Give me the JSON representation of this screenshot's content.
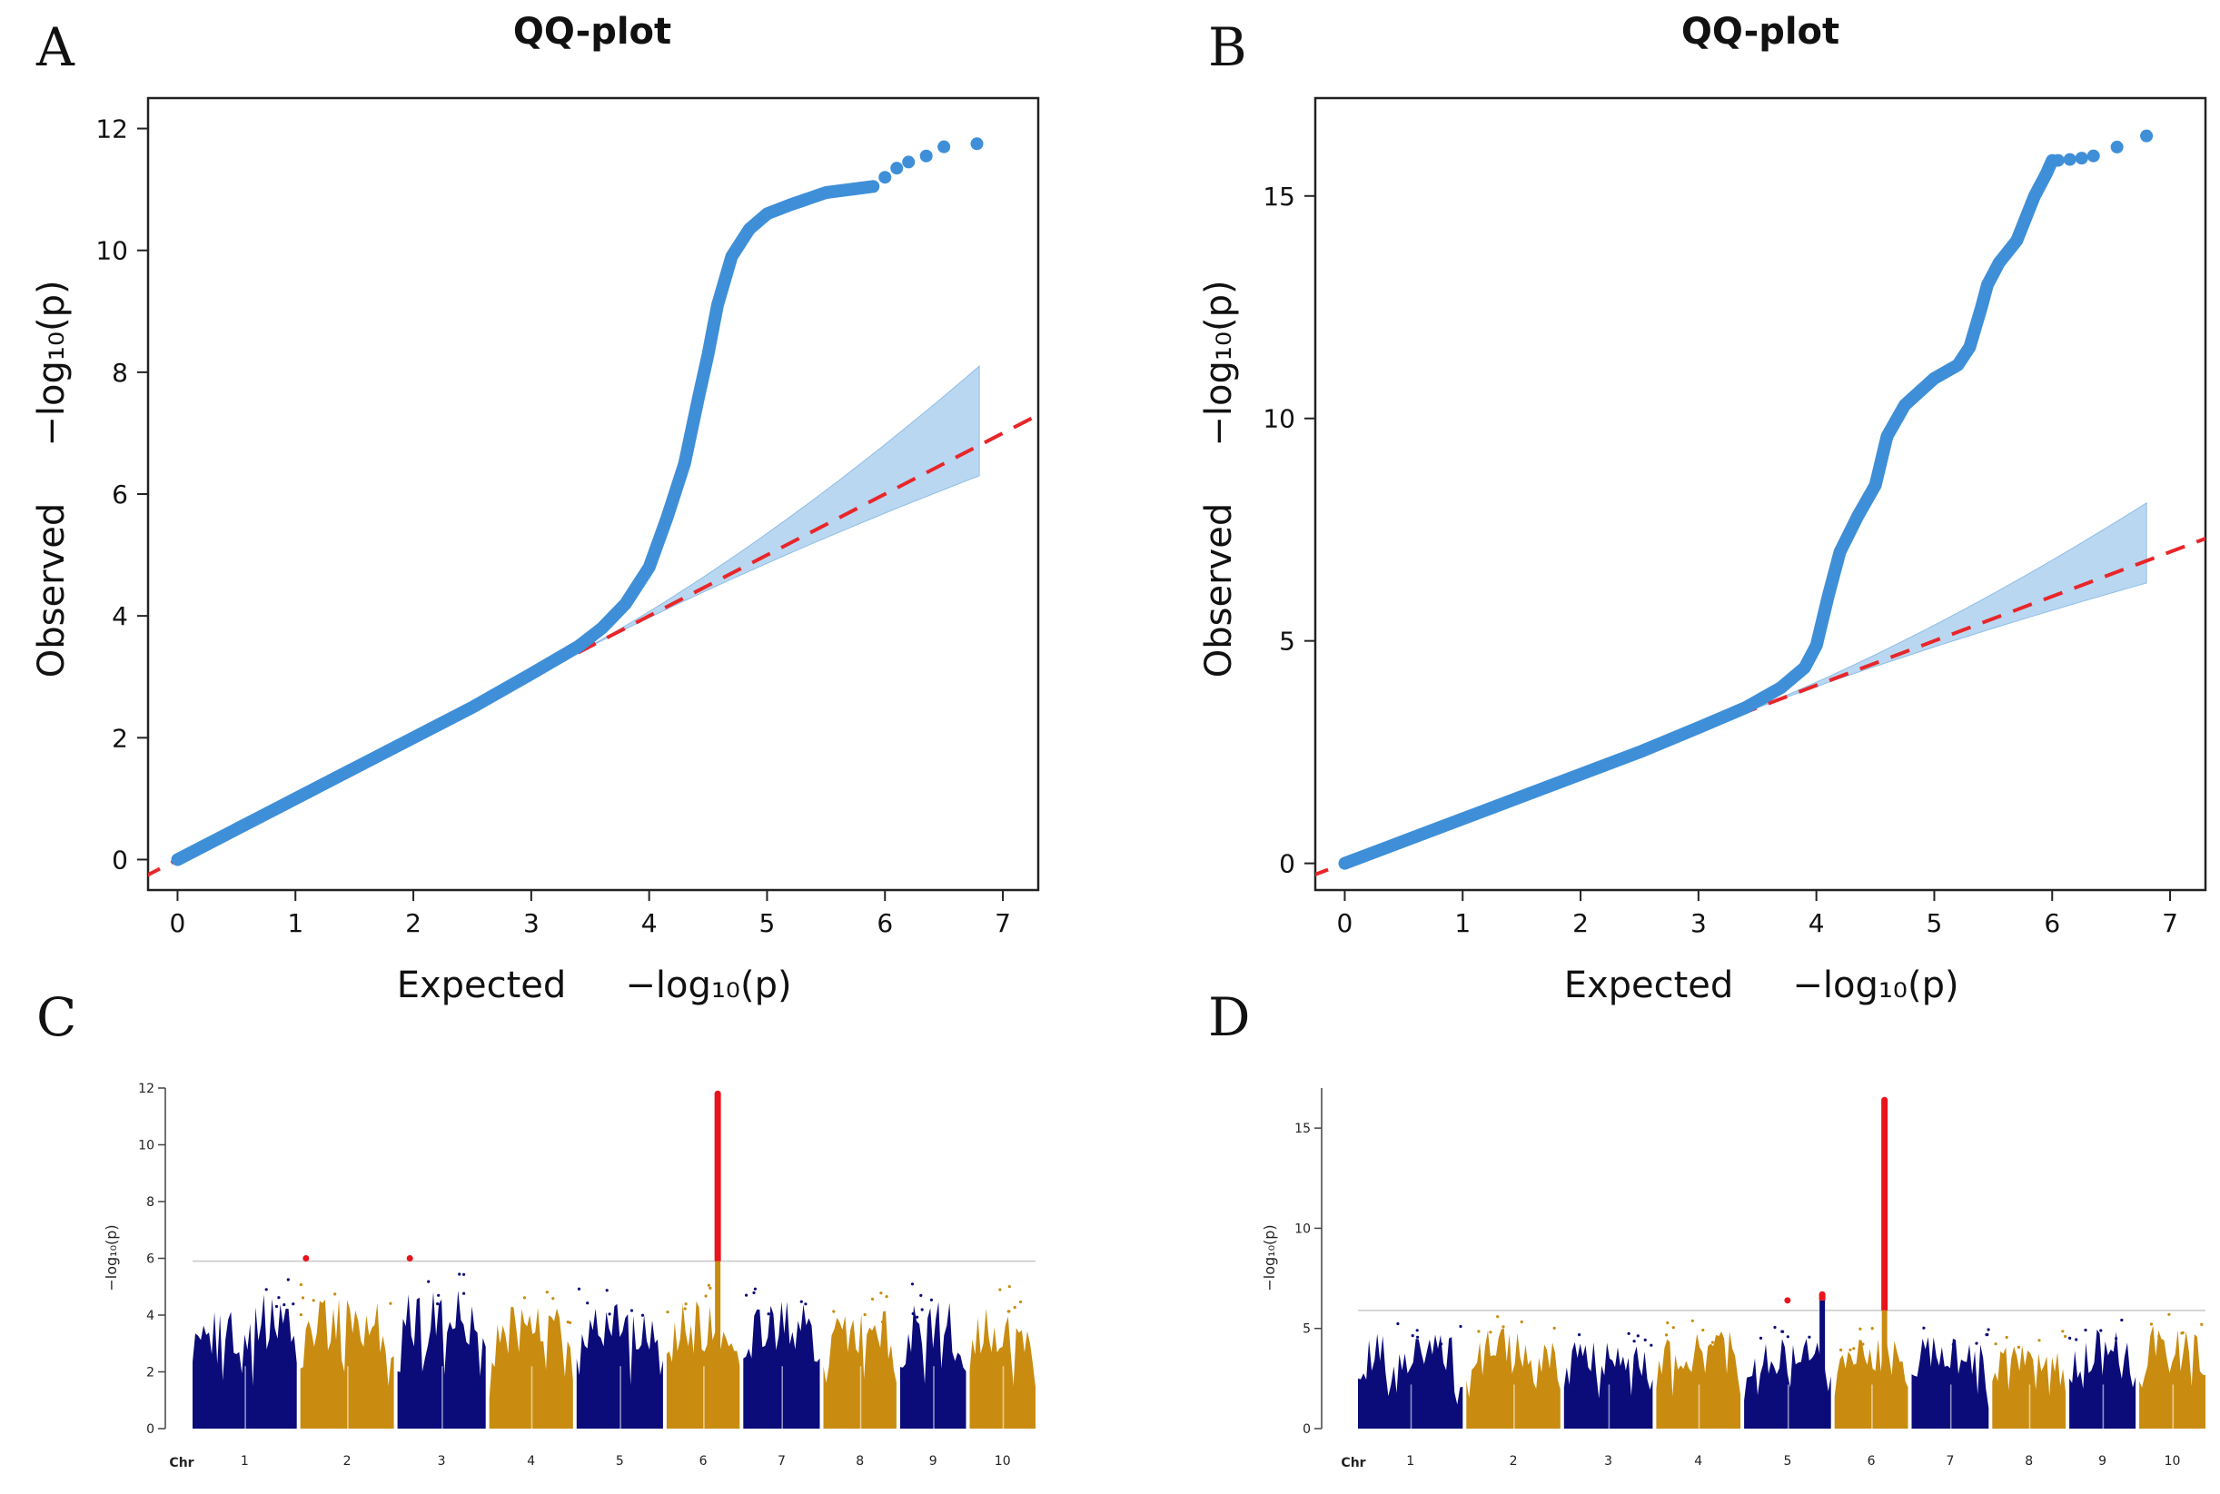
{
  "panel_letters": [
    "A",
    "B",
    "C",
    "D"
  ],
  "chart_data": [
    {
      "panel": "A",
      "type": "scatter",
      "title": "QQ-plot",
      "xlabel": "Expected",
      "ylabel": "Observed",
      "axis_math": "−log₁₀(p)",
      "x_ticks": [
        0,
        1,
        2,
        3,
        4,
        5,
        6,
        7
      ],
      "y_ticks": [
        0,
        2,
        4,
        6,
        8,
        10,
        12
      ],
      "xlim": [
        -0.25,
        7.3
      ],
      "ylim": [
        -0.5,
        12.5
      ],
      "observed_curve": [
        [
          0,
          0
        ],
        [
          0.5,
          0.5
        ],
        [
          1,
          1
        ],
        [
          1.5,
          1.5
        ],
        [
          2,
          2
        ],
        [
          2.5,
          2.5
        ],
        [
          3,
          3.05
        ],
        [
          3.4,
          3.5
        ],
        [
          3.6,
          3.8
        ],
        [
          3.8,
          4.2
        ],
        [
          4,
          4.8
        ],
        [
          4.15,
          5.6
        ],
        [
          4.3,
          6.5
        ],
        [
          4.42,
          7.6
        ],
        [
          4.5,
          8.3
        ],
        [
          4.58,
          9.1
        ],
        [
          4.7,
          9.9
        ],
        [
          4.85,
          10.35
        ],
        [
          5,
          10.6
        ],
        [
          5.2,
          10.75
        ],
        [
          5.5,
          10.95
        ],
        [
          5.9,
          11.05
        ]
      ],
      "top_points": [
        [
          6,
          11.2
        ],
        [
          6.1,
          11.35
        ],
        [
          6.2,
          11.45
        ],
        [
          6.35,
          11.55
        ],
        [
          6.5,
          11.7
        ],
        [
          6.78,
          11.75
        ]
      ],
      "expected_line": [
        [
          -0.3,
          -0.3
        ],
        [
          7.3,
          7.3
        ]
      ],
      "ci_band": {
        "x": [
          3.3,
          6.8
        ],
        "lower": [
          3.3,
          6.3
        ],
        "upper": [
          3.3,
          8.1
        ]
      }
    },
    {
      "panel": "B",
      "type": "scatter",
      "title": "QQ-plot",
      "xlabel": "Expected",
      "ylabel": "Observed",
      "axis_math": "−log₁₀(p)",
      "x_ticks": [
        0,
        1,
        2,
        3,
        4,
        5,
        6,
        7
      ],
      "y_ticks": [
        0,
        5,
        10,
        15
      ],
      "xlim": [
        -0.25,
        7.3
      ],
      "ylim": [
        -0.6,
        17.2
      ],
      "observed_curve": [
        [
          0,
          0
        ],
        [
          0.5,
          0.5
        ],
        [
          1,
          1
        ],
        [
          1.5,
          1.5
        ],
        [
          2,
          2
        ],
        [
          2.5,
          2.5
        ],
        [
          3,
          3.05
        ],
        [
          3.4,
          3.5
        ],
        [
          3.7,
          3.95
        ],
        [
          3.9,
          4.4
        ],
        [
          4,
          4.9
        ],
        [
          4.1,
          6
        ],
        [
          4.2,
          7
        ],
        [
          4.35,
          7.8
        ],
        [
          4.5,
          8.5
        ],
        [
          4.6,
          9.6
        ],
        [
          4.75,
          10.3
        ],
        [
          5,
          10.9
        ],
        [
          5.2,
          11.2
        ],
        [
          5.3,
          11.6
        ],
        [
          5.4,
          12.5
        ],
        [
          5.45,
          13
        ],
        [
          5.55,
          13.5
        ],
        [
          5.7,
          14
        ],
        [
          5.85,
          15
        ],
        [
          5.95,
          15.5
        ],
        [
          6,
          15.8
        ]
      ],
      "top_points": [
        [
          6.05,
          15.8
        ],
        [
          6.15,
          15.82
        ],
        [
          6.25,
          15.85
        ],
        [
          6.35,
          15.9
        ],
        [
          6.55,
          16.1
        ],
        [
          6.8,
          16.35
        ]
      ],
      "expected_line": [
        [
          -0.3,
          -0.3
        ],
        [
          7.3,
          7.3
        ]
      ],
      "ci_band": {
        "x": [
          3.3,
          6.8
        ],
        "lower": [
          3.3,
          6.3
        ],
        "upper": [
          3.3,
          8.1
        ]
      }
    },
    {
      "panel": "C",
      "type": "scatter",
      "subtype": "manhattan",
      "ylabel": "−log₁₀(p)",
      "xlabel": "Chr",
      "y_ticks": [
        0,
        2,
        4,
        6,
        8,
        10,
        12
      ],
      "ylim": [
        0,
        12
      ],
      "threshold": 5.9,
      "chromosomes": [
        {
          "label": "1",
          "size": 1.17,
          "color": "#0b0b7a",
          "base_max": 4.8
        },
        {
          "label": "2",
          "size": 1.05,
          "color": "#c98c10",
          "base_max": 4.6
        },
        {
          "label": "3",
          "size": 0.99,
          "color": "#0b0b7a",
          "base_max": 4.9
        },
        {
          "label": "4",
          "size": 0.94,
          "color": "#c98c10",
          "base_max": 4.3
        },
        {
          "label": "5",
          "size": 0.97,
          "color": "#0b0b7a",
          "base_max": 4.4
        },
        {
          "label": "6",
          "size": 0.82,
          "color": "#c98c10",
          "base_max": 4.5
        },
        {
          "label": "7",
          "size": 0.86,
          "color": "#0b0b7a",
          "base_max": 4.5
        },
        {
          "label": "8",
          "size": 0.82,
          "color": "#c98c10",
          "base_max": 4.2
        },
        {
          "label": "9",
          "size": 0.74,
          "color": "#0b0b7a",
          "base_max": 4.5
        },
        {
          "label": "10",
          "size": 0.74,
          "color": "#c98c10",
          "base_max": 4.6
        }
      ],
      "peaks": [
        {
          "chr": 6,
          "pos": 0.7,
          "max": 11.8,
          "min": 5.9
        },
        {
          "chr": 2,
          "pos": 0.06,
          "max": 6.0,
          "min": 6.0
        },
        {
          "chr": 3,
          "pos": 0.14,
          "max": 6.0,
          "min": 6.0
        }
      ]
    },
    {
      "panel": "D",
      "type": "scatter",
      "subtype": "manhattan",
      "ylabel": "−log₁₀(p)",
      "xlabel": "Chr",
      "y_ticks": [
        0,
        5,
        10,
        15
      ],
      "ylim": [
        0,
        17
      ],
      "threshold": 5.9,
      "chromosomes": [
        {
          "label": "1",
          "size": 1.17,
          "color": "#0b0b7a",
          "base_max": 4.8
        },
        {
          "label": "2",
          "size": 1.05,
          "color": "#c98c10",
          "base_max": 5.0
        },
        {
          "label": "3",
          "size": 0.99,
          "color": "#0b0b7a",
          "base_max": 4.4
        },
        {
          "label": "4",
          "size": 0.94,
          "color": "#c98c10",
          "base_max": 4.9
        },
        {
          "label": "5",
          "size": 0.97,
          "color": "#0b0b7a",
          "base_max": 4.5
        },
        {
          "label": "6",
          "size": 0.82,
          "color": "#c98c10",
          "base_max": 4.5
        },
        {
          "label": "7",
          "size": 0.86,
          "color": "#0b0b7a",
          "base_max": 4.7
        },
        {
          "label": "8",
          "size": 0.82,
          "color": "#c98c10",
          "base_max": 4.3
        },
        {
          "label": "9",
          "size": 0.74,
          "color": "#0b0b7a",
          "base_max": 5.0
        },
        {
          "label": "10",
          "size": 0.74,
          "color": "#c98c10",
          "base_max": 5.2
        }
      ],
      "peaks": [
        {
          "chr": 6,
          "pos": 0.68,
          "max": 16.4,
          "min": 5.9
        },
        {
          "chr": 5,
          "pos": 0.9,
          "max": 6.7,
          "min": 6.4
        },
        {
          "chr": 5,
          "pos": 0.5,
          "max": 6.4,
          "min": 6.4
        }
      ]
    }
  ]
}
